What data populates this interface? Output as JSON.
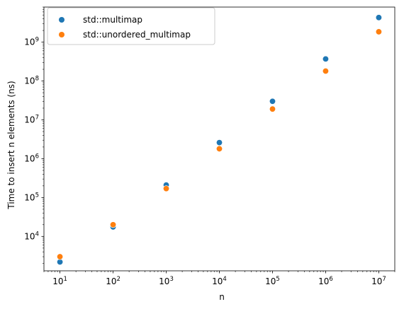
{
  "chart_data": {
    "type": "scatter",
    "title": "",
    "xlabel": "n",
    "ylabel": "Time to insert n elements (ns)",
    "xscale": "log",
    "yscale": "log",
    "xlim": [
      5,
      20000000
    ],
    "ylim": [
      1300,
      8000000000
    ],
    "x_ticks": [
      {
        "value": 10,
        "base": "10",
        "exp": "1"
      },
      {
        "value": 100,
        "base": "10",
        "exp": "2"
      },
      {
        "value": 1000,
        "base": "10",
        "exp": "3"
      },
      {
        "value": 10000,
        "base": "10",
        "exp": "4"
      },
      {
        "value": 100000,
        "base": "10",
        "exp": "5"
      },
      {
        "value": 1000000,
        "base": "10",
        "exp": "6"
      },
      {
        "value": 10000000,
        "base": "10",
        "exp": "7"
      }
    ],
    "y_ticks": [
      {
        "value": 10000,
        "base": "10",
        "exp": "4"
      },
      {
        "value": 100000,
        "base": "10",
        "exp": "5"
      },
      {
        "value": 1000000,
        "base": "10",
        "exp": "6"
      },
      {
        "value": 10000000,
        "base": "10",
        "exp": "7"
      },
      {
        "value": 100000000,
        "base": "10",
        "exp": "8"
      },
      {
        "value": 1000000000,
        "base": "10",
        "exp": "9"
      }
    ],
    "grid": false,
    "legend_position": "top-left",
    "series": [
      {
        "name": "std::multimap",
        "color": "#1f77b4",
        "x": [
          10,
          100,
          1000,
          10000,
          100000,
          1000000,
          10000000
        ],
        "y": [
          2200,
          17500,
          210000,
          2600000,
          30000000,
          370000000,
          4300000000
        ]
      },
      {
        "name": "std::unordered_multimap",
        "color": "#ff7f0e",
        "x": [
          10,
          100,
          1000,
          10000,
          100000,
          1000000,
          10000000
        ],
        "y": [
          3000,
          20000,
          170000,
          1800000,
          19000000,
          180000000,
          1850000000
        ]
      }
    ]
  }
}
